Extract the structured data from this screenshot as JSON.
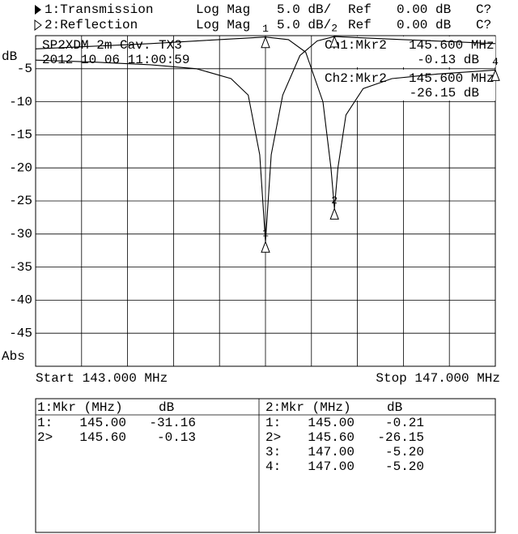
{
  "header": [
    {
      "name": "1:Transmission",
      "format": "Log Mag",
      "scale": "5.0 dB/",
      "ref_label": "Ref",
      "ref": "0.00 dB",
      "cal": "C?"
    },
    {
      "name": "2:Reflection",
      "format": "Log Mag",
      "scale": "5.0 dB/",
      "ref_label": "Ref",
      "ref": "0.00 dB",
      "cal": "C?"
    }
  ],
  "chart_data": {
    "type": "line",
    "ylabel": "dB",
    "ylabel_bottom": "Abs",
    "start_label": "Start 143.000 MHz",
    "stop_label": "Stop 147.000 MHz",
    "title": "SP2XDM 2m Cav. TX3",
    "subtitle": "2012 10 06 11:00:59",
    "readouts": [
      {
        "label": "Ch1:Mkr2",
        "freq": "145.600 MHz",
        "value": "-0.13 dB"
      },
      {
        "label": "Ch2:Mkr2",
        "freq": "145.600 MHz",
        "value": "-26.15 dB"
      }
    ],
    "xlim": [
      143,
      147
    ],
    "ylim": [
      -50,
      0
    ],
    "xticks": [
      143,
      143.4,
      143.8,
      144.2,
      144.6,
      145,
      145.4,
      145.8,
      146.2,
      146.6,
      147
    ],
    "yticks": [
      -5,
      -10,
      -15,
      -20,
      -25,
      -30,
      -35,
      -40,
      -45
    ],
    "grid": true,
    "series": [
      {
        "name": "1:Transmission",
        "color": "#000000",
        "x": [
          143.0,
          143.5,
          144.0,
          144.4,
          144.7,
          144.85,
          144.95,
          145.0,
          145.05,
          145.15,
          145.3,
          145.45,
          145.6,
          145.8,
          146.2,
          146.6,
          147.0
        ],
        "values": [
          -3.7,
          -4.0,
          -4.4,
          -5.0,
          -6.5,
          -9,
          -18,
          -31.16,
          -18,
          -9,
          -3,
          -0.8,
          -0.13,
          -0.3,
          -0.6,
          -0.9,
          -1.2
        ],
        "markers": [
          {
            "label": "1",
            "x": 145.0,
            "y": -31.16
          },
          {
            "label": "2",
            "x": 145.6,
            "y": -0.13
          }
        ]
      },
      {
        "name": "2:Reflection",
        "color": "#000000",
        "x": [
          143.0,
          143.5,
          144.0,
          144.5,
          144.8,
          145.0,
          145.2,
          145.35,
          145.5,
          145.57,
          145.6,
          145.63,
          145.7,
          145.85,
          146.1,
          146.5,
          147.0
        ],
        "values": [
          -2.0,
          -1.6,
          -1.2,
          -0.7,
          -0.4,
          -0.21,
          -0.6,
          -2.5,
          -10,
          -20,
          -26.15,
          -20,
          -12,
          -8,
          -6.5,
          -5.8,
          -5.2
        ],
        "markers": [
          {
            "label": "1",
            "x": 145.0,
            "y": -0.21
          },
          {
            "label": "2",
            "x": 145.6,
            "y": -26.15
          },
          {
            "label": "4",
            "x": 147.0,
            "y": -5.2
          }
        ]
      }
    ]
  },
  "tables": [
    {
      "header": [
        "1:Mkr (MHz)",
        "dB"
      ],
      "rows": [
        [
          "1:",
          "145.00",
          "-31.16"
        ],
        [
          "2>",
          "145.60",
          "-0.13"
        ]
      ]
    },
    {
      "header": [
        "2:Mkr (MHz)",
        "dB"
      ],
      "rows": [
        [
          "1:",
          "145.00",
          "-0.21"
        ],
        [
          "2>",
          "145.60",
          "-26.15"
        ],
        [
          "3:",
          "147.00",
          "-5.20"
        ],
        [
          "4:",
          "147.00",
          "-5.20"
        ]
      ]
    }
  ]
}
